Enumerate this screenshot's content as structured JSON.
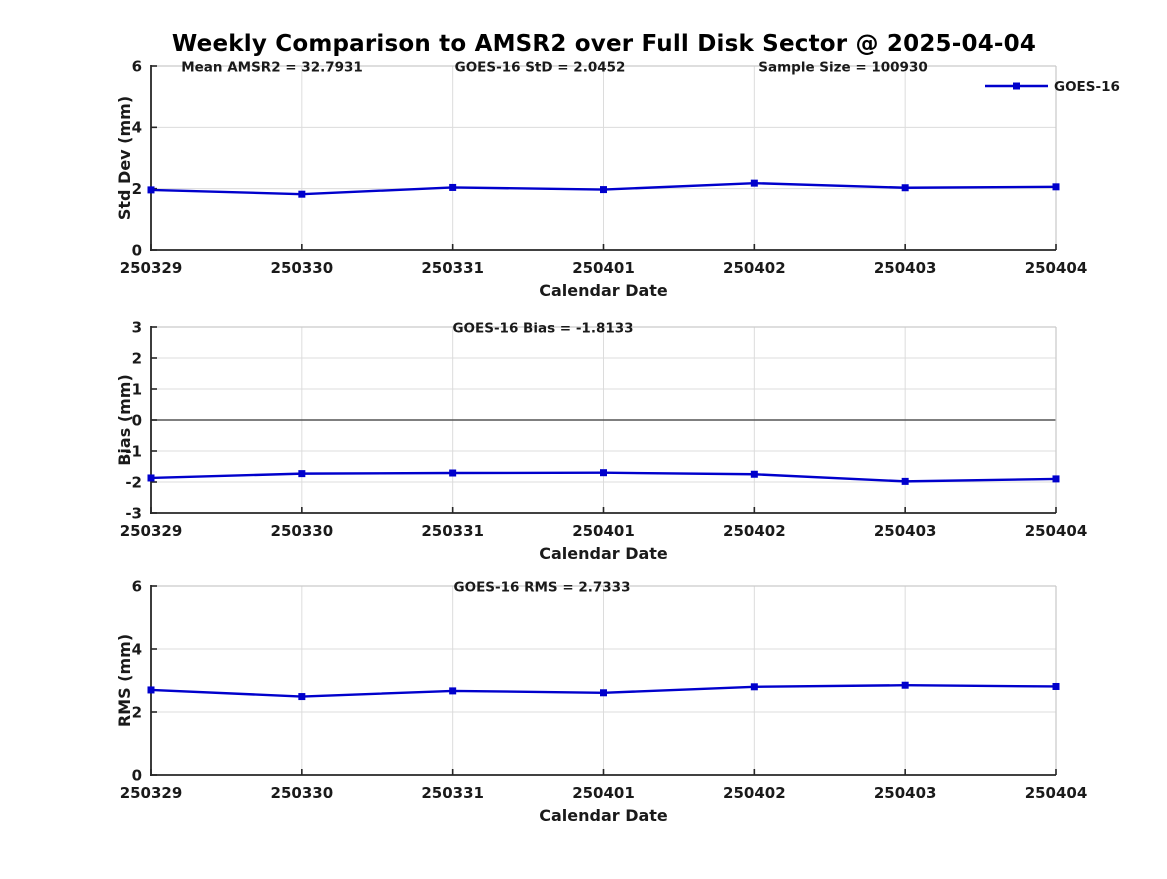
{
  "title": "Weekly Comparison to AMSR2 over Full Disk Sector @ 2025-04-04",
  "colors": {
    "line": "#0000CC",
    "text": "#1A1A1A",
    "grid": "#DCDCDC",
    "zero_line": "#555555",
    "frame_light": "#C9C9C9",
    "axis": "#262626",
    "title": "#000000",
    "background": "#FFFFFF"
  },
  "legend": {
    "label": "GOES-16",
    "position": "top-right-outside"
  },
  "chart_data": [
    {
      "id": "std_dev",
      "type": "line",
      "ylabel": "Std Dev (mm)",
      "xlabel": "Calendar Date",
      "ylim": [
        0,
        6
      ],
      "yticks": [
        0,
        2,
        4,
        6
      ],
      "grid": true,
      "categories": [
        "250329",
        "250330",
        "250331",
        "250401",
        "250402",
        "250403",
        "250404"
      ],
      "series": [
        {
          "name": "GOES-16",
          "values": [
            1.96,
            1.82,
            2.04,
            1.97,
            2.18,
            2.03,
            2.06
          ]
        }
      ],
      "annotations": [
        {
          "text": "Mean AMSR2 = 32.7931",
          "x": 272
        },
        {
          "text": "GOES-16 StD = 2.0452",
          "x": 540
        },
        {
          "text": "Sample Size = 100930",
          "x": 843
        }
      ],
      "show_legend": true
    },
    {
      "id": "bias",
      "type": "line",
      "ylabel": "Bias (mm)",
      "xlabel": "Calendar Date",
      "ylim": [
        -3,
        3
      ],
      "yticks": [
        -3,
        -2,
        -1,
        0,
        1,
        2,
        3
      ],
      "grid": true,
      "emphasize_zero": true,
      "categories": [
        "250329",
        "250330",
        "250331",
        "250401",
        "250402",
        "250403",
        "250404"
      ],
      "series": [
        {
          "name": "GOES-16",
          "values": [
            -1.87,
            -1.73,
            -1.71,
            -1.7,
            -1.75,
            -1.98,
            -1.9
          ]
        }
      ],
      "annotations": [
        {
          "text": "GOES-16 Bias  = -1.8133",
          "x": 543
        }
      ],
      "show_legend": false
    },
    {
      "id": "rms",
      "type": "line",
      "ylabel": "RMS (mm)",
      "xlabel": "Calendar Date",
      "ylim": [
        0,
        6
      ],
      "yticks": [
        0,
        2,
        4,
        6
      ],
      "grid": true,
      "categories": [
        "250329",
        "250330",
        "250331",
        "250401",
        "250402",
        "250403",
        "250404"
      ],
      "series": [
        {
          "name": "GOES-16",
          "values": [
            2.7,
            2.49,
            2.67,
            2.61,
            2.8,
            2.85,
            2.81
          ]
        }
      ],
      "annotations": [
        {
          "text": "GOES-16 RMS = 2.7333",
          "x": 542
        }
      ],
      "show_legend": false
    }
  ]
}
